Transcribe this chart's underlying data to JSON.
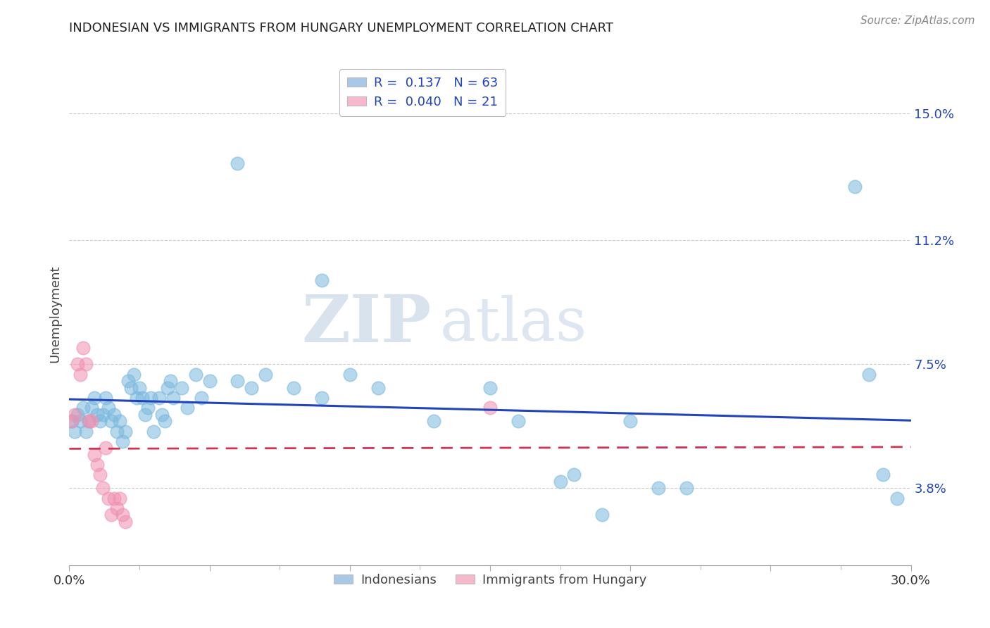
{
  "title": "INDONESIAN VS IMMIGRANTS FROM HUNGARY UNEMPLOYMENT CORRELATION CHART",
  "source": "Source: ZipAtlas.com",
  "ylabel": "Unemployment",
  "xlim": [
    0.0,
    0.3
  ],
  "ylim": [
    0.015,
    0.165
  ],
  "yticks": [
    0.038,
    0.075,
    0.112,
    0.15
  ],
  "ytick_labels": [
    "3.8%",
    "7.5%",
    "11.2%",
    "15.0%"
  ],
  "xticks": [
    0.0,
    0.05,
    0.1,
    0.15,
    0.2,
    0.25,
    0.3
  ],
  "xtick_labels": [
    "0.0%",
    "",
    "",
    "",
    "",
    "",
    "30.0%"
  ],
  "legend_entries": [
    {
      "label": "R =  0.137   N = 63",
      "color": "#a8c8e8"
    },
    {
      "label": "R =  0.040   N = 21",
      "color": "#f8b8cc"
    }
  ],
  "footer_labels": [
    "Indonesians",
    "Immigrants from Hungary"
  ],
  "footer_colors": [
    "#a8c8e8",
    "#f8b8cc"
  ],
  "blue_color": "#7ab8de",
  "pink_color": "#f090b0",
  "blue_line_color": "#2244bb",
  "pink_line_color": "#cc3355",
  "watermark_zip": "ZIP",
  "watermark_atlas": "atlas",
  "blue_scatter": [
    [
      0.001,
      0.058
    ],
    [
      0.002,
      0.055
    ],
    [
      0.003,
      0.06
    ],
    [
      0.004,
      0.058
    ],
    [
      0.005,
      0.062
    ],
    [
      0.006,
      0.055
    ],
    [
      0.007,
      0.058
    ],
    [
      0.008,
      0.062
    ],
    [
      0.009,
      0.065
    ],
    [
      0.01,
      0.06
    ],
    [
      0.011,
      0.058
    ],
    [
      0.012,
      0.06
    ],
    [
      0.013,
      0.065
    ],
    [
      0.014,
      0.062
    ],
    [
      0.015,
      0.058
    ],
    [
      0.016,
      0.06
    ],
    [
      0.017,
      0.055
    ],
    [
      0.018,
      0.058
    ],
    [
      0.019,
      0.052
    ],
    [
      0.02,
      0.055
    ],
    [
      0.021,
      0.07
    ],
    [
      0.022,
      0.068
    ],
    [
      0.023,
      0.072
    ],
    [
      0.024,
      0.065
    ],
    [
      0.025,
      0.068
    ],
    [
      0.026,
      0.065
    ],
    [
      0.027,
      0.06
    ],
    [
      0.028,
      0.062
    ],
    [
      0.029,
      0.065
    ],
    [
      0.03,
      0.055
    ],
    [
      0.032,
      0.065
    ],
    [
      0.033,
      0.06
    ],
    [
      0.034,
      0.058
    ],
    [
      0.035,
      0.068
    ],
    [
      0.036,
      0.07
    ],
    [
      0.037,
      0.065
    ],
    [
      0.04,
      0.068
    ],
    [
      0.042,
      0.062
    ],
    [
      0.045,
      0.072
    ],
    [
      0.047,
      0.065
    ],
    [
      0.05,
      0.07
    ],
    [
      0.06,
      0.07
    ],
    [
      0.065,
      0.068
    ],
    [
      0.07,
      0.072
    ],
    [
      0.08,
      0.068
    ],
    [
      0.09,
      0.065
    ],
    [
      0.1,
      0.072
    ],
    [
      0.11,
      0.068
    ],
    [
      0.13,
      0.058
    ],
    [
      0.15,
      0.068
    ],
    [
      0.16,
      0.058
    ],
    [
      0.175,
      0.04
    ],
    [
      0.18,
      0.042
    ],
    [
      0.19,
      0.03
    ],
    [
      0.2,
      0.058
    ],
    [
      0.21,
      0.038
    ],
    [
      0.22,
      0.038
    ],
    [
      0.06,
      0.135
    ],
    [
      0.09,
      0.1
    ],
    [
      0.285,
      0.072
    ],
    [
      0.29,
      0.042
    ],
    [
      0.295,
      0.035
    ],
    [
      0.28,
      0.128
    ]
  ],
  "pink_scatter": [
    [
      0.001,
      0.058
    ],
    [
      0.002,
      0.06
    ],
    [
      0.003,
      0.075
    ],
    [
      0.004,
      0.072
    ],
    [
      0.005,
      0.08
    ],
    [
      0.006,
      0.075
    ],
    [
      0.007,
      0.058
    ],
    [
      0.008,
      0.058
    ],
    [
      0.009,
      0.048
    ],
    [
      0.01,
      0.045
    ],
    [
      0.011,
      0.042
    ],
    [
      0.012,
      0.038
    ],
    [
      0.013,
      0.05
    ],
    [
      0.014,
      0.035
    ],
    [
      0.015,
      0.03
    ],
    [
      0.016,
      0.035
    ],
    [
      0.017,
      0.032
    ],
    [
      0.018,
      0.035
    ],
    [
      0.019,
      0.03
    ],
    [
      0.02,
      0.028
    ],
    [
      0.15,
      0.062
    ]
  ]
}
